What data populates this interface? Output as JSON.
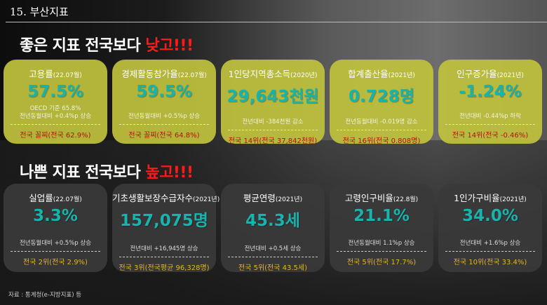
{
  "header": {
    "title": "15. 부산지표"
  },
  "good_heading": {
    "text": "좋은 지표 전국보다 ",
    "highlight": "낮고!!!"
  },
  "bad_heading": {
    "text": "나쁜 지표 전국보다 ",
    "highlight": "높고!!!"
  },
  "colors": {
    "good_card": "#bec23c",
    "bad_card": "#3a3a3a",
    "value": "#19b3ad",
    "highlight": "#ff1a1a",
    "good_rank": "#b3100e",
    "bad_rank": "#e3b51f"
  },
  "good": [
    {
      "title": "고용률",
      "period": "(22.07월)",
      "value": "57.5%",
      "sub1": "OECD 기준 65.8%",
      "sub2": "전년동월대비 +0.4%p 상승",
      "rank": "전국 꼴찌(전국  62.9%)"
    },
    {
      "title": "경제활동참가율",
      "period": "(22.07월)",
      "value": "59.5%",
      "sub1": "",
      "sub2": "전년동월대비 +0.5%p 상승",
      "rank": "전국 꼴찌(전국  64.8%)"
    },
    {
      "title": "1인당지역총소득",
      "period": "(2020년)",
      "value": "29,643천원",
      "sub1": "",
      "sub2": "전년대비 -384천원 감소",
      "rank": "전국 14위(전국  37,842천원)"
    },
    {
      "title": "합계출산율",
      "period": "(2021년)",
      "value": "0.728명",
      "sub1": "",
      "sub2": "전년동월대비 -0.019명 감소",
      "rank": "전국 16위(전국  0.808명)"
    },
    {
      "title": "인구증가율",
      "period": "(2021년)",
      "value": "-1.24%",
      "sub1": "",
      "sub2": "전년대비 -0.44%p 하락",
      "rank": "전국 14위(전국  -0.46%)"
    }
  ],
  "bad": [
    {
      "title": "실업률",
      "period": "(22.07월)",
      "value": "3.3%",
      "sub1": "",
      "sub2": "전년동월대비 +0.5%p 상승",
      "rank": "전국 2위(전국  2.9%)"
    },
    {
      "title": "기초생활보장수급자수",
      "period": "(2021년)",
      "value": "157,075명",
      "sub1": "",
      "sub2": "전년대비 +16,945명 상승",
      "rank": "전국 3위(전국평균  96,328명)"
    },
    {
      "title": "평균연령",
      "period": "(2021년)",
      "value": "45.3세",
      "sub1": "",
      "sub2": "전년대비 +0.5세 상승",
      "rank": "전국 5위(전국  43.5세)"
    },
    {
      "title": "고령인구비율",
      "period": "(22.8월)",
      "value": "21.1%",
      "sub1": "",
      "sub2": "전년동월대비 1.1%p 상승",
      "rank": "전국 5위(전국 17.7%)"
    },
    {
      "title": "1인가구비율",
      "period": "(2021년)",
      "value": "34.0%",
      "sub1": "",
      "sub2": "전년대비 +1.6%p 상승",
      "rank": "전국 10위(전국 33.4%)"
    }
  ],
  "source": "자료 : 통계청(e-지방지표) 등"
}
